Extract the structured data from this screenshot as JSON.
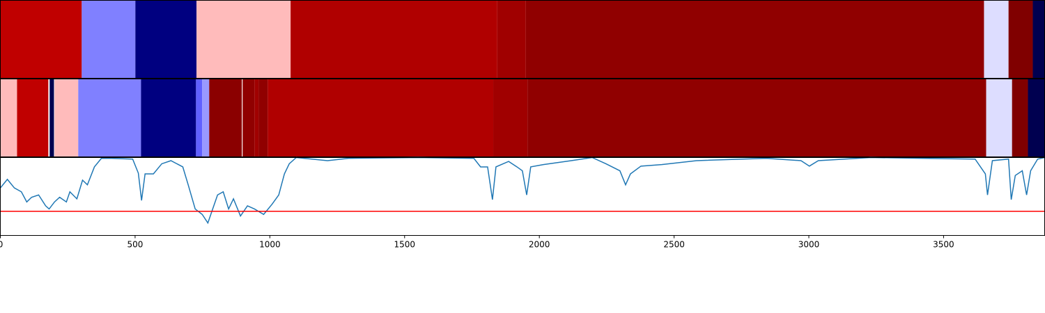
{
  "chart_data": [
    {
      "type": "segments",
      "xlim": [
        0,
        3875
      ],
      "segments": [
        {
          "start": 0,
          "end": 302,
          "color": "#c00000"
        },
        {
          "start": 302,
          "end": 501,
          "color": "#8080ff"
        },
        {
          "start": 501,
          "end": 728,
          "color": "#000080"
        },
        {
          "start": 728,
          "end": 1077,
          "color": "#ffbbbb"
        },
        {
          "start": 1077,
          "end": 1844,
          "color": "#b00000"
        },
        {
          "start": 1844,
          "end": 1950,
          "color": "#a00000"
        },
        {
          "start": 1950,
          "end": 3650,
          "color": "#900000"
        },
        {
          "start": 3650,
          "end": 3741,
          "color": "#ddddff"
        },
        {
          "start": 3741,
          "end": 3831,
          "color": "#800000"
        },
        {
          "start": 3831,
          "end": 3875,
          "color": "#000050"
        }
      ]
    },
    {
      "type": "segments",
      "xlim": [
        0,
        3875
      ],
      "segments": [
        {
          "start": 0,
          "end": 62,
          "color": "#ffbbbb"
        },
        {
          "start": 62,
          "end": 178,
          "color": "#c00000"
        },
        {
          "start": 183,
          "end": 199,
          "color": "#000050"
        },
        {
          "start": 201,
          "end": 289,
          "color": "#ffbbbb"
        },
        {
          "start": 289,
          "end": 522,
          "color": "#8080ff"
        },
        {
          "start": 522,
          "end": 726,
          "color": "#000080"
        },
        {
          "start": 726,
          "end": 749,
          "color": "#6060ff"
        },
        {
          "start": 749,
          "end": 775,
          "color": "#9999ff"
        },
        {
          "start": 775,
          "end": 896,
          "color": "#8b0000"
        },
        {
          "start": 899,
          "end": 943,
          "color": "#900000"
        },
        {
          "start": 943,
          "end": 958,
          "color": "#a00000"
        },
        {
          "start": 958,
          "end": 992,
          "color": "#900000"
        },
        {
          "start": 992,
          "end": 1829,
          "color": "#b00000"
        },
        {
          "start": 1829,
          "end": 1956,
          "color": "#a00000"
        },
        {
          "start": 1956,
          "end": 3658,
          "color": "#900000"
        },
        {
          "start": 3658,
          "end": 3754,
          "color": "#ddddff"
        },
        {
          "start": 3754,
          "end": 3813,
          "color": "#800000"
        },
        {
          "start": 3813,
          "end": 3875,
          "color": "#000050"
        }
      ]
    },
    {
      "type": "line",
      "xlim": [
        0,
        3875
      ],
      "ylim": [
        0,
        1
      ],
      "xticks": [
        0,
        500,
        1000,
        1500,
        2000,
        2500,
        3000,
        3500
      ],
      "color": "#1f77b4",
      "threshold": {
        "value": 0.31,
        "color": "#ff0000"
      },
      "x": [
        0,
        26,
        52,
        78,
        98,
        116,
        142,
        168,
        181,
        201,
        220,
        245,
        258,
        284,
        305,
        323,
        349,
        375,
        413,
        491,
        512,
        524,
        537,
        568,
        599,
        633,
        677,
        697,
        723,
        749,
        770,
        788,
        806,
        827,
        847,
        865,
        891,
        917,
        943,
        977,
        1008,
        1033,
        1054,
        1072,
        1098,
        1214,
        1292,
        1550,
        1757,
        1782,
        1808,
        1826,
        1839,
        1886,
        1917,
        1937,
        1953,
        1968,
        2015,
        2118,
        2196,
        2247,
        2299,
        2320,
        2338,
        2377,
        2454,
        2583,
        2842,
        2971,
        3002,
        3035,
        3229,
        3617,
        3655,
        3663,
        3681,
        3741,
        3751,
        3766,
        3792,
        3808,
        3823,
        3849,
        3875
      ],
      "y": [
        0.61,
        0.72,
        0.61,
        0.56,
        0.43,
        0.49,
        0.52,
        0.38,
        0.34,
        0.43,
        0.49,
        0.43,
        0.56,
        0.47,
        0.71,
        0.65,
        0.88,
        0.99,
        0.99,
        0.98,
        0.8,
        0.45,
        0.79,
        0.79,
        0.92,
        0.96,
        0.88,
        0.65,
        0.34,
        0.27,
        0.16,
        0.34,
        0.52,
        0.56,
        0.34,
        0.47,
        0.25,
        0.38,
        0.34,
        0.27,
        0.4,
        0.52,
        0.79,
        0.92,
        1.0,
        0.96,
        0.99,
        1.0,
        0.99,
        0.88,
        0.88,
        0.46,
        0.88,
        0.95,
        0.88,
        0.83,
        0.52,
        0.88,
        0.91,
        0.96,
        1.0,
        0.92,
        0.83,
        0.65,
        0.79,
        0.89,
        0.91,
        0.96,
        0.99,
        0.96,
        0.89,
        0.96,
        1.0,
        0.98,
        0.79,
        0.52,
        0.96,
        0.98,
        0.46,
        0.77,
        0.83,
        0.52,
        0.83,
        0.98,
        1.0
      ]
    }
  ]
}
